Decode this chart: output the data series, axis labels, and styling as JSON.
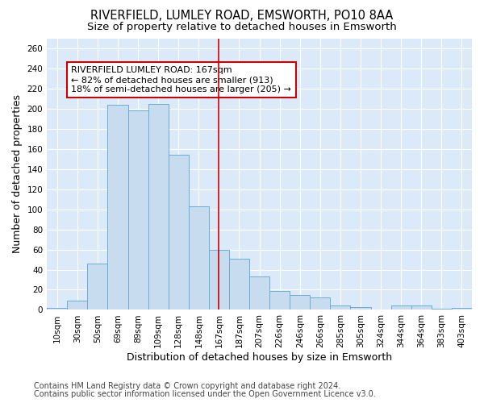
{
  "title": "RIVERFIELD, LUMLEY ROAD, EMSWORTH, PO10 8AA",
  "subtitle": "Size of property relative to detached houses in Emsworth",
  "xlabel": "Distribution of detached houses by size in Emsworth",
  "ylabel": "Number of detached properties",
  "categories": [
    "10sqm",
    "30sqm",
    "50sqm",
    "69sqm",
    "89sqm",
    "109sqm",
    "128sqm",
    "148sqm",
    "167sqm",
    "187sqm",
    "207sqm",
    "226sqm",
    "246sqm",
    "266sqm",
    "285sqm",
    "305sqm",
    "324sqm",
    "344sqm",
    "364sqm",
    "383sqm",
    "403sqm"
  ],
  "values": [
    2,
    9,
    46,
    204,
    198,
    205,
    154,
    103,
    60,
    51,
    33,
    19,
    15,
    12,
    4,
    3,
    0,
    4,
    4,
    1,
    2
  ],
  "bar_color": "#c8dcf0",
  "bar_edge_color": "#6badd6",
  "vline_x_idx": 8,
  "vline_color": "#cc0000",
  "annotation_text": "RIVERFIELD LUMLEY ROAD: 167sqm\n← 82% of detached houses are smaller (913)\n18% of semi-detached houses are larger (205) →",
  "annotation_box_color": "#ffffff",
  "annotation_box_edge": "#cc0000",
  "ylim": [
    0,
    270
  ],
  "yticks": [
    0,
    20,
    40,
    60,
    80,
    100,
    120,
    140,
    160,
    180,
    200,
    220,
    240,
    260
  ],
  "background_color": "#dce9f8",
  "grid_color": "#ffffff",
  "figure_bg": "#ffffff",
  "footer1": "Contains HM Land Registry data © Crown copyright and database right 2024.",
  "footer2": "Contains public sector information licensed under the Open Government Licence v3.0.",
  "title_fontsize": 10.5,
  "subtitle_fontsize": 9.5,
  "tick_fontsize": 7.5,
  "label_fontsize": 9,
  "footer_fontsize": 7
}
